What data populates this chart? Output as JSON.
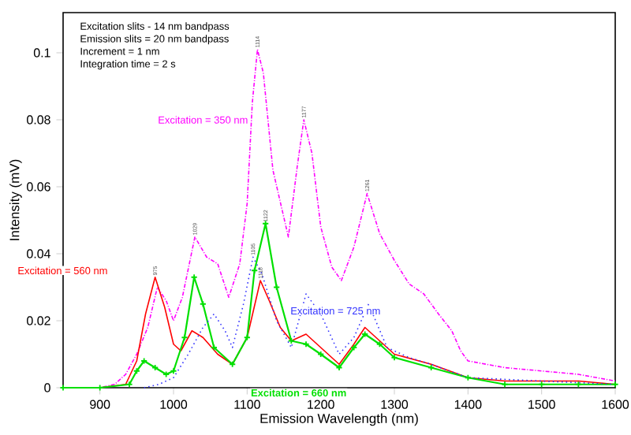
{
  "chart_data": {
    "type": "line",
    "xlabel": "Emission Wavelength (nm)",
    "ylabel": "Intensity (mV)",
    "xlim": [
      850,
      1600
    ],
    "ylim": [
      0,
      0.112
    ],
    "xticks": [
      900,
      1000,
      1100,
      1200,
      1300,
      1400,
      1500,
      1600
    ],
    "yticks": [
      0,
      0.02,
      0.04,
      0.06,
      0.08,
      0.1
    ],
    "grid": false,
    "legend": false,
    "series": [
      {
        "name": "Excitation = 350 nm",
        "color": "#ff00ff",
        "line_style": "dashed",
        "x": [
          850,
          900,
          920,
          935,
          950,
          965,
          978,
          990,
          1000,
          1012,
          1029,
          1045,
          1060,
          1075,
          1090,
          1100,
          1107,
          1114,
          1122,
          1135,
          1156,
          1168,
          1177,
          1188,
          1200,
          1215,
          1228,
          1245,
          1263,
          1280,
          1300,
          1320,
          1340,
          1360,
          1378,
          1390,
          1400,
          1450,
          1500,
          1550,
          1600
        ],
        "values": [
          0,
          0,
          0.001,
          0.004,
          0.01,
          0.018,
          0.03,
          0.026,
          0.02,
          0.027,
          0.045,
          0.039,
          0.037,
          0.027,
          0.037,
          0.055,
          0.085,
          0.101,
          0.094,
          0.065,
          0.045,
          0.066,
          0.08,
          0.07,
          0.048,
          0.036,
          0.032,
          0.042,
          0.058,
          0.046,
          0.038,
          0.031,
          0.028,
          0.022,
          0.017,
          0.011,
          0.008,
          0.006,
          0.005,
          0.004,
          0.002
        ]
      },
      {
        "name": "Excitation = 560 nm",
        "color": "#ff0000",
        "line_style": "solid",
        "x": [
          850,
          900,
          935,
          950,
          962,
          975,
          988,
          1000,
          1010,
          1025,
          1040,
          1060,
          1080,
          1100,
          1118,
          1130,
          1145,
          1160,
          1180,
          1200,
          1225,
          1245,
          1260,
          1280,
          1300,
          1350,
          1400,
          1450,
          1500,
          1550,
          1600
        ],
        "values": [
          0,
          0,
          0.001,
          0.008,
          0.022,
          0.033,
          0.024,
          0.013,
          0.011,
          0.017,
          0.015,
          0.01,
          0.007,
          0.015,
          0.032,
          0.026,
          0.018,
          0.014,
          0.016,
          0.012,
          0.007,
          0.013,
          0.018,
          0.014,
          0.01,
          0.007,
          0.003,
          0.002,
          0.002,
          0.002,
          0.001
        ]
      },
      {
        "name": "Excitation = 660 nm",
        "color": "#00e000",
        "line_style": "solid",
        "marker": "cross",
        "x": [
          850,
          900,
          940,
          950,
          960,
          975,
          990,
          1000,
          1015,
          1028,
          1040,
          1055,
          1080,
          1100,
          1110,
          1125,
          1140,
          1160,
          1180,
          1200,
          1225,
          1245,
          1260,
          1280,
          1300,
          1350,
          1400,
          1450,
          1500,
          1550,
          1600
        ],
        "values": [
          0,
          0,
          0.001,
          0.005,
          0.008,
          0.006,
          0.004,
          0.005,
          0.015,
          0.033,
          0.025,
          0.012,
          0.007,
          0.015,
          0.035,
          0.049,
          0.03,
          0.014,
          0.013,
          0.01,
          0.006,
          0.012,
          0.016,
          0.013,
          0.009,
          0.006,
          0.003,
          0.001,
          0.001,
          0.001,
          0.001
        ]
      },
      {
        "name": "Excitation = 725 nm",
        "color": "#3333ff",
        "line_style": "dotted",
        "x": [
          960,
          980,
          1000,
          1020,
          1040,
          1055,
          1070,
          1080,
          1095,
          1108,
          1120,
          1140,
          1160,
          1180,
          1200,
          1225,
          1245,
          1265,
          1290,
          1320,
          1350,
          1400,
          1500,
          1600
        ],
        "values": [
          0,
          0.001,
          0.003,
          0.01,
          0.018,
          0.022,
          0.017,
          0.012,
          0.025,
          0.039,
          0.034,
          0.02,
          0.012,
          0.028,
          0.022,
          0.01,
          0.015,
          0.025,
          0.012,
          0.009,
          0.007,
          0.003,
          0.002,
          0.001
        ]
      }
    ],
    "annotations": [
      "Excitation slits - 14 nm bandpass",
      "Emission slits = 20 nm bandpass",
      "Increment = 1 nm",
      "Integration time = 2 s",
      {
        "text": "975",
        "x": 975,
        "y": 0.033
      },
      {
        "text": "1029",
        "x": 1029,
        "y": 0.045
      },
      {
        "text": "1105",
        "x": 1108,
        "y": 0.039
      },
      {
        "text": "1118",
        "x": 1118,
        "y": 0.032
      },
      {
        "text": "1122",
        "x": 1125,
        "y": 0.049
      },
      {
        "text": "1114",
        "x": 1114,
        "y": 0.101
      },
      {
        "text": "1177",
        "x": 1177,
        "y": 0.08
      },
      {
        "text": "1261",
        "x": 1263,
        "y": 0.058
      }
    ]
  }
}
